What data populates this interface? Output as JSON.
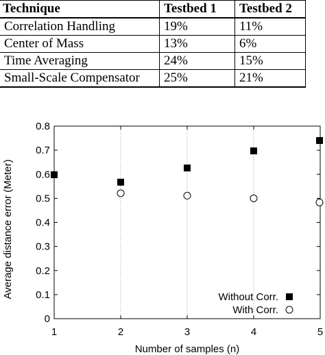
{
  "table": {
    "headers": [
      "Technique",
      "Testbed 1",
      "Testbed 2"
    ],
    "rows": [
      [
        "Correlation Handling",
        "19%",
        "11%"
      ],
      [
        "Center of Mass",
        "13%",
        "6%"
      ],
      [
        "Time Averaging",
        "24%",
        "15%"
      ],
      [
        "Small-Scale Compensator",
        "25%",
        "21%"
      ]
    ]
  },
  "chart_data": {
    "type": "scatter",
    "title": "",
    "xlabel": "Number of samples (n)",
    "ylabel": "Average distance error (Meter)",
    "xlim": [
      1,
      5
    ],
    "ylim": [
      0,
      0.8
    ],
    "x_ticks": [
      "1",
      "2",
      "3",
      "4",
      "5"
    ],
    "y_ticks": [
      "0",
      "0.1",
      "0.2",
      "0.3",
      "0.4",
      "0.5",
      "0.6",
      "0.7",
      "0.8"
    ],
    "grid": "vertical-dotted",
    "legend_position": "bottom-right",
    "series": [
      {
        "name": "Without Corr.",
        "marker": "filled-square",
        "color": "#000000",
        "x": [
          1,
          2,
          3,
          4,
          5
        ],
        "y": [
          0.598,
          0.567,
          0.626,
          0.697,
          0.74
        ]
      },
      {
        "name": "With Corr.",
        "marker": "open-circle",
        "color": "#000000",
        "x": [
          2,
          3,
          4,
          5
        ],
        "y": [
          0.521,
          0.511,
          0.5,
          0.483
        ]
      }
    ]
  }
}
